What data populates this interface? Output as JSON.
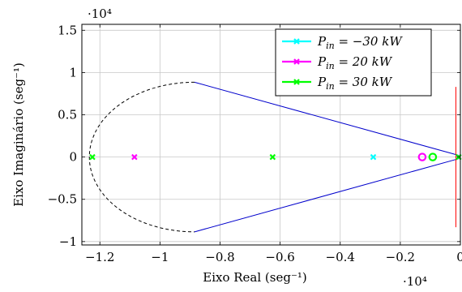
{
  "chart_data": {
    "type": "scatter",
    "xlabel": "Eixo Real (seg⁻¹)",
    "ylabel": "Eixo Imaginário (seg⁻¹)",
    "x_scale_label": "·10⁴",
    "y_scale_label": "·10⁴",
    "xlim": [
      -1.26,
      0.0
    ],
    "ylim": [
      -1.04,
      1.57
    ],
    "x_ticks": [
      -1.2,
      -1.0,
      -0.8,
      -0.6,
      -0.4,
      -0.2,
      0
    ],
    "x_tick_labels": [
      "−1.2",
      "−1",
      "−0.8",
      "−0.6",
      "−0.4",
      "−0.2",
      "0"
    ],
    "y_ticks": [
      -1,
      -0.5,
      0,
      0.5,
      1,
      1.5
    ],
    "y_tick_labels": [
      "−1",
      "−0.5",
      "0",
      "0.5",
      "1",
      "1.5"
    ],
    "grid": true,
    "legend_position": "top-right",
    "series": [
      {
        "name": "P_in = −30 kW",
        "legend_base": "P",
        "legend_sub": "in",
        "legend_rest": " = −30 kW",
        "color": "#00ffff",
        "poles": [
          [
            -0.29,
            0
          ],
          [
            -0.006,
            0
          ]
        ]
      },
      {
        "name": "P_in = 20 kW",
        "legend_base": "P",
        "legend_sub": "in",
        "legend_rest": " = 20 kW",
        "color": "#ff00ff",
        "poles": [
          [
            -1.085,
            0
          ],
          [
            -0.006,
            0
          ]
        ],
        "zeros": [
          [
            -0.127,
            0
          ]
        ]
      },
      {
        "name": "P_in = 30 kW",
        "legend_base": "P",
        "legend_sub": "in",
        "legend_rest": " = 30 kW",
        "color": "#00ff00",
        "poles": [
          [
            -1.225,
            0
          ],
          [
            -0.625,
            0
          ],
          [
            -0.006,
            0
          ]
        ],
        "zeros": [
          [
            -0.092,
            0
          ]
        ]
      }
    ],
    "guides": {
      "cone_lines": [
        [
          [
            -0.885,
            0.885
          ],
          [
            -0.006,
            0.02
          ]
        ],
        [
          [
            -0.885,
            -0.885
          ],
          [
            -0.006,
            -0.02
          ]
        ]
      ],
      "cone_color": "#0000cc",
      "dashed_arc": {
        "center_x": -0.885,
        "radius_x": 0.35,
        "radius_y": 0.885,
        "color": "#000000"
      },
      "vertical_line": {
        "x": -0.015,
        "y_range": [
          -0.83,
          0.83
        ],
        "color": "#ff0000"
      }
    }
  }
}
